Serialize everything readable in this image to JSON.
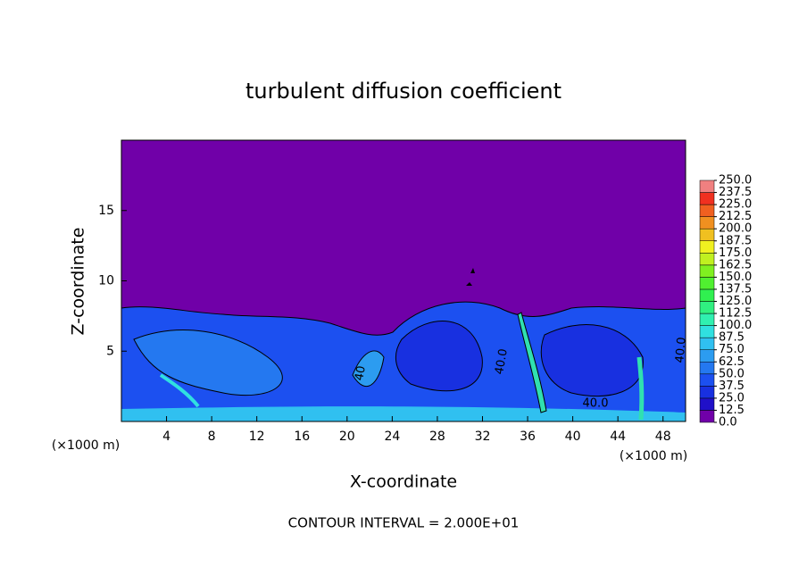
{
  "chart_data": {
    "type": "contour",
    "title": "turbulent diffusion coefficient",
    "xlabel": "X-coordinate",
    "ylabel": "Z-coordinate",
    "x_unit_labels": [
      "(×1000 m)",
      "(×1000 m)"
    ],
    "footer": "CONTOUR INTERVAL = 2.000E+01",
    "xlim": [
      0,
      50
    ],
    "ylim": [
      0,
      20
    ],
    "xticks": [
      4,
      8,
      12,
      16,
      20,
      24,
      28,
      32,
      36,
      40,
      44,
      48
    ],
    "yticks": [
      5,
      10,
      15
    ],
    "colorbar": {
      "levels": [
        {
          "value": 0,
          "label": "0.0"
        },
        {
          "value": 12.5,
          "label": "12.5"
        },
        {
          "value": 25,
          "label": "25.0"
        },
        {
          "value": 37.5,
          "label": "37.5"
        },
        {
          "value": 50,
          "label": "50.0"
        },
        {
          "value": 62.5,
          "label": "62.5"
        },
        {
          "value": 75,
          "label": "75.0"
        },
        {
          "value": 87.5,
          "label": "87.5"
        },
        {
          "value": 100,
          "label": "100.0"
        },
        {
          "value": 112.5,
          "label": "112.5"
        },
        {
          "value": 125,
          "label": "125.0"
        },
        {
          "value": 137.5,
          "label": "137.5"
        },
        {
          "value": 150,
          "label": "150.0"
        },
        {
          "value": 162.5,
          "label": "162.5"
        },
        {
          "value": 175,
          "label": "175.0"
        },
        {
          "value": 187.5,
          "label": "187.5"
        },
        {
          "value": 200,
          "label": "200.0"
        },
        {
          "value": 212.5,
          "label": "212.5"
        },
        {
          "value": 225,
          "label": "225.0"
        },
        {
          "value": 237.5,
          "label": "237.5"
        },
        {
          "value": 250,
          "label": "250.0"
        }
      ],
      "colors": [
        "#7000a8",
        "#2010c8",
        "#1830e0",
        "#1c50f0",
        "#2478f0",
        "#2c9cf0",
        "#30c0f0",
        "#30e0e0",
        "#30f0b0",
        "#30f080",
        "#30f050",
        "#50f030",
        "#80f020",
        "#c0f020",
        "#f0f020",
        "#f0c020",
        "#f09020",
        "#f06020",
        "#f03020",
        "#f08080"
      ]
    },
    "contour_labels": [
      {
        "value": 40,
        "label": "40.0"
      },
      {
        "value": 40,
        "label": "40.0"
      },
      {
        "value": 40,
        "label": "40"
      },
      {
        "value": 40,
        "label": "40.0"
      }
    ]
  }
}
